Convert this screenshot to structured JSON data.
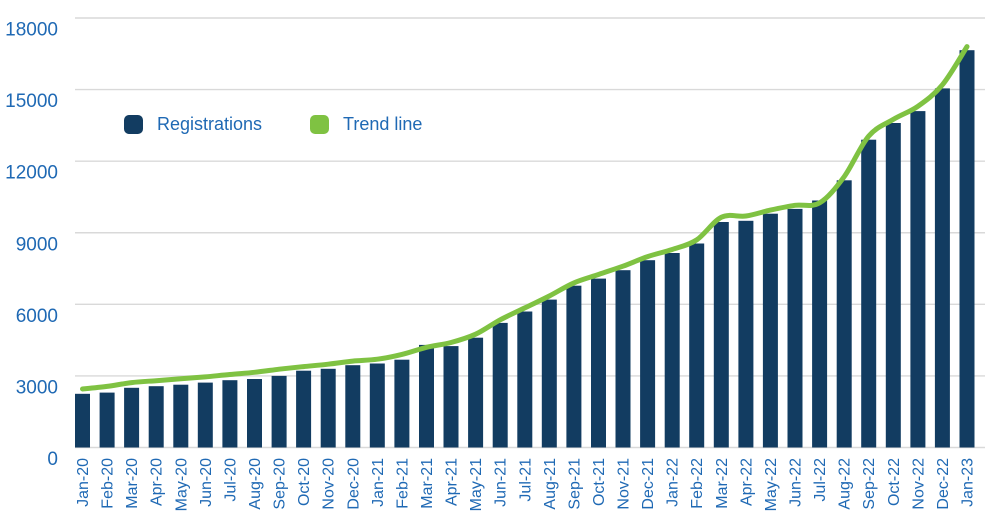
{
  "chart_data": {
    "type": "bar",
    "title": "",
    "xlabel": "",
    "ylabel": "",
    "categories": [
      "Jan-20",
      "Feb-20",
      "Mar-20",
      "Apr-20",
      "May-20",
      "Jun-20",
      "Jul-20",
      "Aug-20",
      "Sep-20",
      "Oct-20",
      "Nov-20",
      "Dec-20",
      "Jan-21",
      "Feb-21",
      "Mar-21",
      "Apr-21",
      "May-21",
      "Jun-21",
      "Jul-21",
      "Aug-21",
      "Sep-21",
      "Oct-21",
      "Nov-21",
      "Dec-21",
      "Jan-22",
      "Feb-22",
      "Mar-22",
      "Apr-22",
      "May-22",
      "Jun-22",
      "Jul-22",
      "Aug-22",
      "Sep-22",
      "Oct-22",
      "Nov-22",
      "Dec-22",
      "Jan-23"
    ],
    "series": [
      {
        "name": "Registrations",
        "type": "bar",
        "color": "#123C61",
        "values": [
          2250,
          2300,
          2500,
          2570,
          2630,
          2720,
          2820,
          2870,
          3000,
          3220,
          3300,
          3450,
          3520,
          3680,
          4300,
          4250,
          4600,
          5220,
          5700,
          6200,
          6780,
          7080,
          7430,
          7850,
          8150,
          8550,
          9450,
          9500,
          9800,
          10000,
          10350,
          11200,
          12900,
          13600,
          14100,
          15050,
          16650
        ]
      },
      {
        "name": "Trend line",
        "type": "line",
        "color": "#7FC242",
        "values": [
          2450,
          2560,
          2720,
          2800,
          2880,
          2960,
          3060,
          3150,
          3280,
          3390,
          3490,
          3620,
          3700,
          3900,
          4200,
          4400,
          4750,
          5350,
          5850,
          6350,
          6900,
          7250,
          7600,
          8000,
          8300,
          8700,
          9650,
          9700,
          9950,
          10150,
          10250,
          11350,
          13050,
          13750,
          14300,
          15200,
          16800
        ]
      }
    ],
    "ylim": [
      0,
      18000
    ],
    "yticks": [
      0,
      3000,
      6000,
      9000,
      12000,
      15000,
      18000
    ],
    "grid": true,
    "legend_position": "inside-top-left",
    "axis_text_color": "#1F69B4",
    "gridline_color": "#D9D9D9",
    "background": "#FFFFFF"
  }
}
